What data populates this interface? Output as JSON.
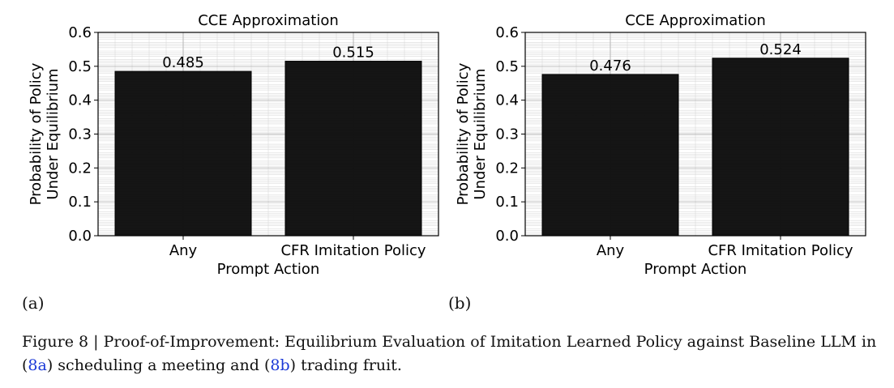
{
  "chart_data": [
    {
      "type": "bar",
      "title": "CCE Approximation",
      "xlabel": "Prompt Action",
      "ylabel": [
        "Probability of Policy",
        "Under Equilibrium"
      ],
      "categories": [
        "Any",
        "CFR Imitation Policy"
      ],
      "values": [
        0.485,
        0.515
      ],
      "value_labels": [
        "0.485",
        "0.515"
      ],
      "ylim": [
        0,
        0.6
      ],
      "yticks": [
        "0.0",
        "0.1",
        "0.2",
        "0.3",
        "0.4",
        "0.5",
        "0.6"
      ],
      "grid": true,
      "bar_color": "#0d0d0d"
    },
    {
      "type": "bar",
      "title": "CCE Approximation",
      "xlabel": "Prompt Action",
      "ylabel": [
        "Probability of Policy",
        "Under Equilibrium"
      ],
      "categories": [
        "Any",
        "CFR Imitation Policy"
      ],
      "values": [
        0.476,
        0.524
      ],
      "value_labels": [
        "0.476",
        "0.524"
      ],
      "ylim": [
        0,
        0.6
      ],
      "yticks": [
        "0.0",
        "0.1",
        "0.2",
        "0.3",
        "0.4",
        "0.5",
        "0.6"
      ],
      "grid": true,
      "bar_color": "#0d0d0d"
    }
  ],
  "subcaptions": [
    "(a)",
    "(b)"
  ],
  "caption": {
    "prefix": "Figure 8 | Proof-of-Improvement: Equilibrium Evaluation of Imitation Learned Policy against Baseline LLM in (",
    "ref_a": "8a",
    "middle": ") scheduling a meeting and (",
    "ref_b": "8b",
    "suffix": ") trading fruit."
  }
}
